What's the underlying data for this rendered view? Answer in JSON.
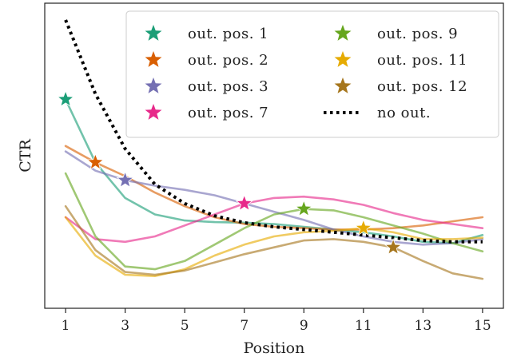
{
  "chart_data": {
    "type": "line",
    "title": "",
    "xlabel": "Position",
    "ylabel": "CTR",
    "xlim": [
      0.3,
      15.7
    ],
    "ylim": [
      0,
      1
    ],
    "x_ticks": [
      1,
      3,
      5,
      7,
      9,
      11,
      13,
      15
    ],
    "y_ticks_shown": false,
    "grid": false,
    "legend_position": "top-right",
    "legend_columns": 2,
    "x": [
      1,
      2,
      3,
      4,
      5,
      6,
      7,
      8,
      9,
      10,
      11,
      12,
      13,
      14,
      15
    ],
    "series": [
      {
        "name": "out. pos. 1",
        "color": "#1b9e77",
        "star_x": 1,
        "values": [
          0.71,
          0.48,
          0.35,
          0.29,
          0.268,
          0.262,
          0.26,
          0.255,
          0.245,
          0.235,
          0.225,
          0.21,
          0.19,
          0.185,
          0.215
        ]
      },
      {
        "name": "out. pos. 2",
        "color": "#d95f02",
        "star_x": 2,
        "values": [
          0.54,
          0.48,
          0.43,
          0.37,
          0.32,
          0.28,
          0.255,
          0.245,
          0.24,
          0.235,
          0.235,
          0.24,
          0.25,
          0.265,
          0.28
        ]
      },
      {
        "name": "out. pos. 3",
        "color": "#7570b3",
        "star_x": 3,
        "values": [
          0.52,
          0.45,
          0.415,
          0.395,
          0.38,
          0.36,
          0.33,
          0.3,
          0.27,
          0.235,
          0.21,
          0.19,
          0.18,
          0.185,
          0.2
        ]
      },
      {
        "name": "out. pos. 7",
        "color": "#e7298a",
        "star_x": 7,
        "values": [
          0.28,
          0.2,
          0.19,
          0.21,
          0.25,
          0.29,
          0.33,
          0.35,
          0.355,
          0.345,
          0.325,
          0.295,
          0.27,
          0.255,
          0.24
        ]
      },
      {
        "name": "out. pos. 9",
        "color": "#66a61e",
        "star_x": 9,
        "values": [
          0.44,
          0.21,
          0.1,
          0.09,
          0.12,
          0.18,
          0.24,
          0.29,
          0.31,
          0.305,
          0.28,
          0.25,
          0.22,
          0.185,
          0.155
        ]
      },
      {
        "name": "out. pos. 11",
        "color": "#e6ab02",
        "star_x": 11,
        "values": [
          0.28,
          0.14,
          0.07,
          0.065,
          0.09,
          0.14,
          0.18,
          0.21,
          0.225,
          0.23,
          0.24,
          0.225,
          0.2,
          0.2,
          0.205
        ]
      },
      {
        "name": "out. pos. 12",
        "color": "#a6761d",
        "star_x": 12,
        "values": [
          0.32,
          0.16,
          0.08,
          0.07,
          0.085,
          0.115,
          0.145,
          0.17,
          0.195,
          0.2,
          0.19,
          0.17,
          0.12,
          0.075,
          0.055
        ]
      },
      {
        "name": "no out.",
        "color": "#000000",
        "dash": true,
        "values": [
          1.0,
          0.73,
          0.53,
          0.4,
          0.33,
          0.285,
          0.26,
          0.245,
          0.235,
          0.225,
          0.215,
          0.205,
          0.195,
          0.19,
          0.19
        ]
      }
    ]
  }
}
